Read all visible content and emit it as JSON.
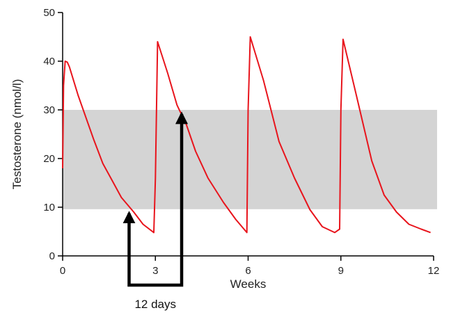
{
  "chart_data": {
    "type": "line",
    "title": "",
    "xlabel": "Weeks",
    "ylabel": "Testosterone (nmol/l)",
    "xlim": [
      0,
      12
    ],
    "ylim": [
      0,
      50
    ],
    "x_ticks": [
      0,
      3,
      6,
      9,
      12
    ],
    "y_ticks": [
      0,
      10,
      20,
      30,
      40,
      50
    ],
    "grid": false,
    "normal_range": {
      "low": 9.6,
      "high": 30,
      "color": "#d4d4d4"
    },
    "series": [
      {
        "name": "Testosterone",
        "color": "#e8141c",
        "x": [
          0,
          0.03,
          0.08,
          0.15,
          0.22,
          0.5,
          1.0,
          1.3,
          1.6,
          1.9,
          2.3,
          2.6,
          2.95,
          3.0,
          3.07,
          3.4,
          3.7,
          4.0,
          4.3,
          4.7,
          5.2,
          5.6,
          5.96,
          6.0,
          6.07,
          6.5,
          7.0,
          7.5,
          8.0,
          8.4,
          8.8,
          8.96,
          9.0,
          9.07,
          9.5,
          10.0,
          10.4,
          10.8,
          11.2,
          11.6,
          11.9
        ],
        "values": [
          18,
          35,
          40,
          39.8,
          38.8,
          33,
          24,
          19,
          15.5,
          12,
          9,
          6.5,
          4.8,
          16,
          44,
          37.5,
          31,
          27,
          21.5,
          16,
          11,
          7.5,
          4.8,
          30,
          45,
          36,
          23.5,
          16,
          9.5,
          6,
          4.8,
          5.5,
          30,
          44.5,
          33,
          19.5,
          12.5,
          9,
          6.5,
          5.5,
          4.8
        ]
      }
    ],
    "annotations": {
      "label": "12 days",
      "start_week": 2.15,
      "end_week": 3.85,
      "start_value": 9.6,
      "end_value": 30
    }
  }
}
